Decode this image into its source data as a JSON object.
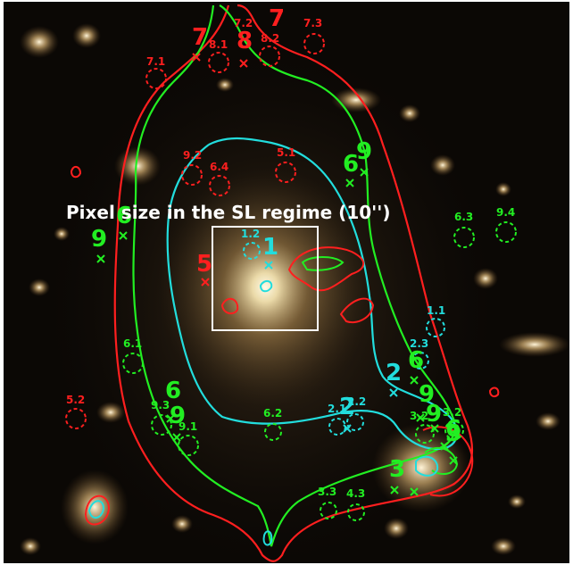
{
  "caption": "Pixel size in the SL regime (10'')",
  "colors": {
    "red": "#ff1f1f",
    "green": "#22ee22",
    "cyan": "#22dddd",
    "white": "#ffffff",
    "sky": "#0b0805"
  },
  "big_labels": [
    {
      "text": "7",
      "color": "red"
    },
    {
      "text": "8",
      "color": "red"
    },
    {
      "text": "7",
      "color": "red"
    },
    {
      "text": "5",
      "color": "red"
    },
    {
      "text": "1",
      "color": "cyan"
    },
    {
      "text": "9",
      "color": "green"
    },
    {
      "text": "6",
      "color": "green"
    },
    {
      "text": "6",
      "color": "green"
    },
    {
      "text": "9",
      "color": "green"
    },
    {
      "text": "6",
      "color": "green"
    },
    {
      "text": "9",
      "color": "green"
    },
    {
      "text": "6",
      "color": "green"
    },
    {
      "text": "9",
      "color": "green"
    },
    {
      "text": "2",
      "color": "cyan"
    },
    {
      "text": "9",
      "color": "green"
    },
    {
      "text": "6",
      "color": "green"
    },
    {
      "text": "3",
      "color": "green"
    },
    {
      "text": "3",
      "color": "green"
    },
    {
      "text": "2",
      "color": "cyan"
    }
  ],
  "small_labels": [
    {
      "text": "7.1",
      "color": "red"
    },
    {
      "text": "8.1",
      "color": "red"
    },
    {
      "text": "7.2",
      "color": "red"
    },
    {
      "text": "8.2",
      "color": "red"
    },
    {
      "text": "7.3",
      "color": "red"
    },
    {
      "text": "9.2",
      "color": "red"
    },
    {
      "text": "6.4",
      "color": "red"
    },
    {
      "text": "5.1",
      "color": "red"
    },
    {
      "text": "1.2",
      "color": "cyan"
    },
    {
      "text": "6.3",
      "color": "green"
    },
    {
      "text": "9.4",
      "color": "green"
    },
    {
      "text": "1.1",
      "color": "cyan"
    },
    {
      "text": "2.3",
      "color": "cyan"
    },
    {
      "text": "6.1",
      "color": "green"
    },
    {
      "text": "5.2",
      "color": "red"
    },
    {
      "text": "9.3",
      "color": "green"
    },
    {
      "text": "9.1",
      "color": "green"
    },
    {
      "text": "6.2",
      "color": "green"
    },
    {
      "text": "2.1",
      "color": "cyan"
    },
    {
      "text": "2.2",
      "color": "cyan"
    },
    {
      "text": "3.2",
      "color": "green"
    },
    {
      "text": "3.2",
      "color": "green"
    },
    {
      "text": "3.3",
      "color": "green"
    },
    {
      "text": "4.3",
      "color": "green"
    }
  ]
}
